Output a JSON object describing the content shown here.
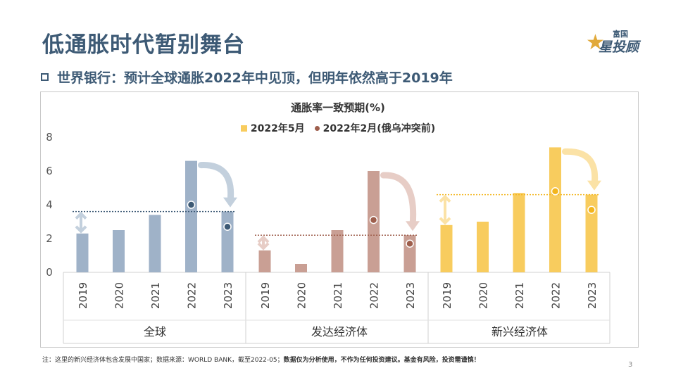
{
  "page": {
    "title": "低通胀时代暂别舞台",
    "subtitle": "世界银行：预计全球通胀2022年中见顶，但明年依然高于2019年",
    "logo_top": "富国",
    "logo_main": "星投顾",
    "footnote_plain": "注：这里的新兴经济体包含发展中国家；数据来源：WORLD BANK，截至2022-05；",
    "footnote_bold": "数据仅为分析使用，不作为任何投资建议。基金有风险，投资需谨慎！",
    "page_number": "3"
  },
  "chart_data": {
    "type": "bar",
    "title": "通胀率一致预期(%)",
    "ylim": [
      0,
      8
    ],
    "yticks": [
      "0",
      "2",
      "4",
      "6",
      "8"
    ],
    "years": [
      "2019",
      "2020",
      "2021",
      "2022",
      "2023"
    ],
    "legend": [
      "2022年5月",
      "2022年2月(俄乌冲突前)"
    ],
    "groups": [
      {
        "name": "全球",
        "color": "#9fb2c8",
        "values": [
          2.3,
          2.5,
          3.4,
          6.6,
          3.6
        ],
        "feb_forecast": {
          "2022": 4.0,
          "2023": 2.7
        }
      },
      {
        "name": "发达经济体",
        "color": "#c99f94",
        "values": [
          1.3,
          0.5,
          2.5,
          6.0,
          2.2
        ],
        "feb_forecast": {
          "2022": 3.1,
          "2023": 1.7
        }
      },
      {
        "name": "新兴经济体",
        "color": "#f8cc5e",
        "values": [
          2.8,
          3.0,
          4.7,
          7.4,
          4.6
        ],
        "feb_forecast": {
          "2022": 4.8,
          "2023": 3.7
        }
      }
    ],
    "grid": false,
    "legend_position": "top-center"
  }
}
